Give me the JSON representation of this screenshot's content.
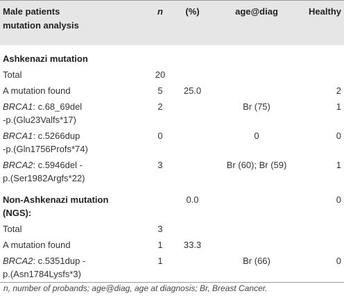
{
  "header": {
    "label": [
      "Male patients",
      "mutation analysis"
    ],
    "n": "n",
    "pct": "(%)",
    "age": "age@diag",
    "healthy": "Healthy"
  },
  "rows": [
    {
      "section": [
        "Ashkenazi mutation"
      ]
    },
    {
      "label": "Total",
      "n": "20"
    },
    {
      "label": "A mutation found",
      "n": "5",
      "pct": "25.0",
      "healthy": "2"
    },
    {
      "gene": "BRCA1",
      "variant": [
        ": c.68_69del",
        "-p.(Glu23Valfs*17)"
      ],
      "n": "2",
      "age": "Br (75)",
      "healthy": "1"
    },
    {
      "gene": "BRCA1",
      "variant": [
        ": c.5266dup",
        "-p.(Gln1756Profs*74)"
      ],
      "n": "0",
      "age": "0",
      "healthy": "0"
    },
    {
      "gene": "BRCA2",
      "variant": [
        ": c.5946del -",
        "p.(Ser1982Argfs*22)"
      ],
      "n": "3",
      "age": "Br (60); Br (59)",
      "healthy": "1"
    },
    {
      "section": [
        "Non-Ashkenazi mutation",
        "(NGS):"
      ],
      "pct": "0.0",
      "healthy": "0"
    },
    {
      "label": "Total",
      "n": "3"
    },
    {
      "label": "A mutation found",
      "n": "1",
      "pct": "33.3"
    },
    {
      "gene": "BRCA2",
      "variant": [
        ": c.5351dup -",
        "p.(Asn1784Lysfs*3)"
      ],
      "n": "1",
      "age": "Br (66)",
      "healthy": "0"
    }
  ],
  "footnote": "n, number of probands; age@diag, age at diagnosis; Br, Breast Cancer."
}
